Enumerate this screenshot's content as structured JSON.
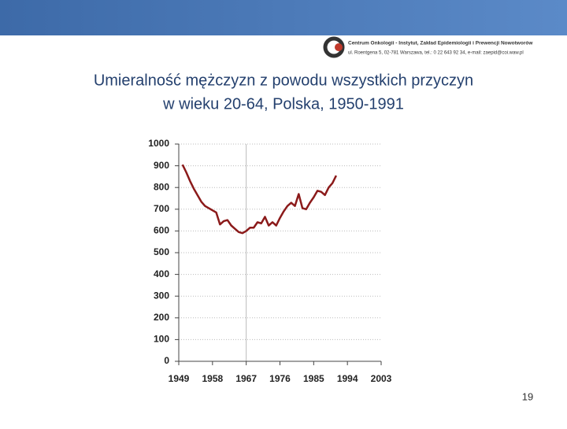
{
  "header": {
    "org_name": "Centrum Onkologii - Instytut, Zakład Epidemiologii i Prewencji Nowotworów",
    "org_address": "ul. Roentgena 5, 02-781 Warszawa, tel.: 0 22 643 92 34, e-mail: zaepid@coi.waw.pl"
  },
  "chart_data": {
    "type": "line",
    "title": "Umieralność mężczyzn z powodu wszystkich przyczyn",
    "subtitle": "w wieku 20-64, Polska, 1950-1991",
    "x": [
      1950,
      1951,
      1952,
      1953,
      1954,
      1955,
      1956,
      1957,
      1958,
      1959,
      1960,
      1961,
      1962,
      1963,
      1964,
      1965,
      1966,
      1967,
      1968,
      1969,
      1970,
      1971,
      1972,
      1973,
      1974,
      1975,
      1976,
      1977,
      1978,
      1979,
      1980,
      1981,
      1982,
      1983,
      1984,
      1985,
      1986,
      1987,
      1988,
      1989,
      1990,
      1991
    ],
    "series": [
      {
        "color": "#8b1a1a",
        "values": [
          905,
          870,
          830,
          795,
          765,
          735,
          715,
          705,
          695,
          685,
          630,
          645,
          650,
          625,
          610,
          595,
          590,
          600,
          615,
          615,
          640,
          635,
          665,
          625,
          640,
          625,
          660,
          690,
          715,
          730,
          715,
          770,
          705,
          700,
          730,
          755,
          785,
          780,
          765,
          800,
          820,
          855
        ]
      }
    ],
    "xlim": [
      1949,
      2003
    ],
    "xticks": [
      1949,
      1958,
      1967,
      1976,
      1985,
      1994,
      2003
    ],
    "ylim": [
      0,
      1000
    ],
    "yticks": [
      0,
      100,
      200,
      300,
      400,
      500,
      600,
      700,
      800,
      900,
      1000
    ],
    "grid": true
  },
  "page_number": "19"
}
